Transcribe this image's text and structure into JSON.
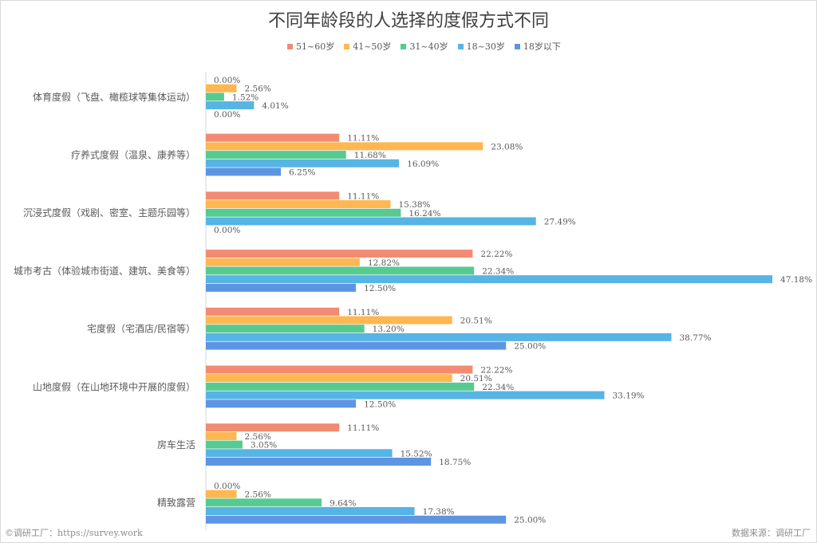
{
  "chart_data": {
    "type": "bar",
    "orientation": "horizontal",
    "title": "不同年龄段的人选择的度假方式不同",
    "categories": [
      "体育度假（飞盘、橄榄球等集体运动）",
      "疗养式度假（温泉、康养等）",
      "沉浸式度假（戏剧、密室、主题乐园等）",
      "城市考古（体验城市街道、建筑、美食等）",
      "宅度假（宅酒店/民宿等）",
      "山地度假（在山地环境中开展的度假）",
      "房车生活",
      "精致露营"
    ],
    "series": [
      {
        "name": "51~60岁",
        "color": "#F28B72",
        "values": [
          0.0,
          11.11,
          11.11,
          22.22,
          11.11,
          22.22,
          11.11,
          0.0
        ]
      },
      {
        "name": "41~50岁",
        "color": "#FFB752",
        "values": [
          2.56,
          23.08,
          15.38,
          12.82,
          20.51,
          20.51,
          2.56,
          2.56
        ]
      },
      {
        "name": "31~40岁",
        "color": "#55CB92",
        "values": [
          1.52,
          11.68,
          16.24,
          22.34,
          13.2,
          22.34,
          3.05,
          9.64
        ]
      },
      {
        "name": "18~30岁",
        "color": "#56B5E4",
        "values": [
          4.01,
          16.09,
          27.49,
          47.18,
          38.77,
          33.19,
          15.52,
          17.38
        ]
      },
      {
        "name": "18岁以下",
        "color": "#5E95E3",
        "values": [
          0.0,
          6.25,
          0.0,
          12.5,
          25.0,
          12.5,
          18.75,
          25.0
        ]
      }
    ],
    "unit": "%",
    "grid": false,
    "legend": "top"
  },
  "footer": {
    "left": "©调研工厂：https://survey.work",
    "right": "数据来源：调研工厂"
  }
}
